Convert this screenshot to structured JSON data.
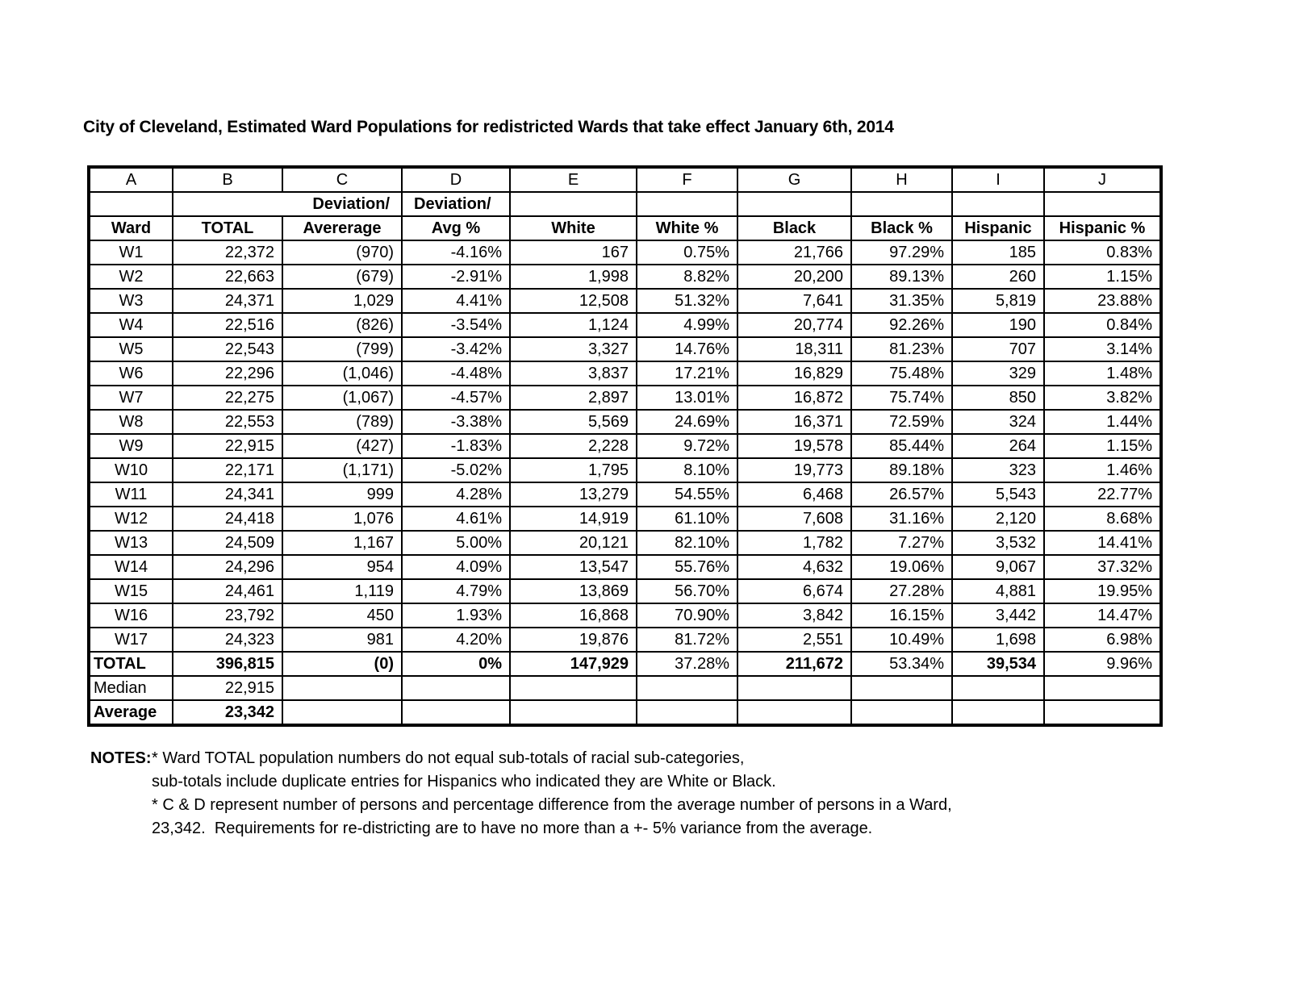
{
  "title": "City of Cleveland, Estimated Ward Populations for redistricted Wards that take effect January 6th, 2014",
  "table": {
    "column_letters": [
      "A",
      "B",
      "C",
      "D",
      "E",
      "F",
      "G",
      "H",
      "I",
      "J"
    ],
    "deviation_header_bc": "Deviation/",
    "deviation_header_d": "Deviation/",
    "headers": [
      "Ward",
      "TOTAL",
      "Avererage",
      "Avg %",
      "White",
      "White %",
      "Black",
      "Black %",
      "Hispanic",
      "Hispanic %"
    ],
    "rows": [
      {
        "ward": "W1",
        "total": "22,372",
        "deviation": "(970)",
        "avg_pct": "-4.16%",
        "white": "167",
        "white_pct": "0.75%",
        "black": "21,766",
        "black_pct": "97.29%",
        "hispanic": "185",
        "hispanic_pct": "0.83%"
      },
      {
        "ward": "W2",
        "total": "22,663",
        "deviation": "(679)",
        "avg_pct": "-2.91%",
        "white": "1,998",
        "white_pct": "8.82%",
        "black": "20,200",
        "black_pct": "89.13%",
        "hispanic": "260",
        "hispanic_pct": "1.15%"
      },
      {
        "ward": "W3",
        "total": "24,371",
        "deviation": "1,029",
        "avg_pct": "4.41%",
        "white": "12,508",
        "white_pct": "51.32%",
        "black": "7,641",
        "black_pct": "31.35%",
        "hispanic": "5,819",
        "hispanic_pct": "23.88%"
      },
      {
        "ward": "W4",
        "total": "22,516",
        "deviation": "(826)",
        "avg_pct": "-3.54%",
        "white": "1,124",
        "white_pct": "4.99%",
        "black": "20,774",
        "black_pct": "92.26%",
        "hispanic": "190",
        "hispanic_pct": "0.84%"
      },
      {
        "ward": "W5",
        "total": "22,543",
        "deviation": "(799)",
        "avg_pct": "-3.42%",
        "white": "3,327",
        "white_pct": "14.76%",
        "black": "18,311",
        "black_pct": "81.23%",
        "hispanic": "707",
        "hispanic_pct": "3.14%"
      },
      {
        "ward": "W6",
        "total": "22,296",
        "deviation": "(1,046)",
        "avg_pct": "-4.48%",
        "white": "3,837",
        "white_pct": "17.21%",
        "black": "16,829",
        "black_pct": "75.48%",
        "hispanic": "329",
        "hispanic_pct": "1.48%"
      },
      {
        "ward": "W7",
        "total": "22,275",
        "deviation": "(1,067)",
        "avg_pct": "-4.57%",
        "white": "2,897",
        "white_pct": "13.01%",
        "black": "16,872",
        "black_pct": "75.74%",
        "hispanic": "850",
        "hispanic_pct": "3.82%"
      },
      {
        "ward": "W8",
        "total": "22,553",
        "deviation": "(789)",
        "avg_pct": "-3.38%",
        "white": "5,569",
        "white_pct": "24.69%",
        "black": "16,371",
        "black_pct": "72.59%",
        "hispanic": "324",
        "hispanic_pct": "1.44%"
      },
      {
        "ward": "W9",
        "total": "22,915",
        "deviation": "(427)",
        "avg_pct": "-1.83%",
        "white": "2,228",
        "white_pct": "9.72%",
        "black": "19,578",
        "black_pct": "85.44%",
        "hispanic": "264",
        "hispanic_pct": "1.15%"
      },
      {
        "ward": "W10",
        "total": "22,171",
        "deviation": "(1,171)",
        "avg_pct": "-5.02%",
        "white": "1,795",
        "white_pct": "8.10%",
        "black": "19,773",
        "black_pct": "89.18%",
        "hispanic": "323",
        "hispanic_pct": "1.46%"
      },
      {
        "ward": "W11",
        "total": "24,341",
        "deviation": "999",
        "avg_pct": "4.28%",
        "white": "13,279",
        "white_pct": "54.55%",
        "black": "6,468",
        "black_pct": "26.57%",
        "hispanic": "5,543",
        "hispanic_pct": "22.77%"
      },
      {
        "ward": "W12",
        "total": "24,418",
        "deviation": "1,076",
        "avg_pct": "4.61%",
        "white": "14,919",
        "white_pct": "61.10%",
        "black": "7,608",
        "black_pct": "31.16%",
        "hispanic": "2,120",
        "hispanic_pct": "8.68%"
      },
      {
        "ward": "W13",
        "total": "24,509",
        "deviation": "1,167",
        "avg_pct": "5.00%",
        "white": "20,121",
        "white_pct": "82.10%",
        "black": "1,782",
        "black_pct": "7.27%",
        "hispanic": "3,532",
        "hispanic_pct": "14.41%"
      },
      {
        "ward": "W14",
        "total": "24,296",
        "deviation": "954",
        "avg_pct": "4.09%",
        "white": "13,547",
        "white_pct": "55.76%",
        "black": "4,632",
        "black_pct": "19.06%",
        "hispanic": "9,067",
        "hispanic_pct": "37.32%"
      },
      {
        "ward": "W15",
        "total": "24,461",
        "deviation": "1,119",
        "avg_pct": "4.79%",
        "white": "13,869",
        "white_pct": "56.70%",
        "black": "6,674",
        "black_pct": "27.28%",
        "hispanic": "4,881",
        "hispanic_pct": "19.95%"
      },
      {
        "ward": "W16",
        "total": "23,792",
        "deviation": "450",
        "avg_pct": "1.93%",
        "white": "16,868",
        "white_pct": "70.90%",
        "black": "3,842",
        "black_pct": "16.15%",
        "hispanic": "3,442",
        "hispanic_pct": "14.47%"
      },
      {
        "ward": "W17",
        "total": "24,323",
        "deviation": "981",
        "avg_pct": "4.20%",
        "white": "19,876",
        "white_pct": "81.72%",
        "black": "2,551",
        "black_pct": "10.49%",
        "hispanic": "1,698",
        "hispanic_pct": "6.98%"
      }
    ],
    "total_row": {
      "label": "TOTAL",
      "total": "396,815",
      "deviation": "(0)",
      "avg_pct": "0%",
      "white": "147,929",
      "white_pct": "37.28%",
      "black": "211,672",
      "black_pct": "53.34%",
      "hispanic": "39,534",
      "hispanic_pct": "9.96%"
    },
    "median_row": {
      "label": "Median",
      "total": "22,915"
    },
    "average_row": {
      "label": "Average",
      "total": "23,342"
    }
  },
  "notes": {
    "label": "NOTES:",
    "lines": [
      "* Ward TOTAL population numbers do not equal sub-totals of racial sub-categories,",
      "sub-totals include duplicate entries for Hispanics who indicated they are White or Black.",
      "* C & D represent number of persons and percentage difference from the average number of persons in a Ward,",
      "23,342.  Requirements for re-districting are to have no more than a +- 5% variance from the average."
    ]
  }
}
